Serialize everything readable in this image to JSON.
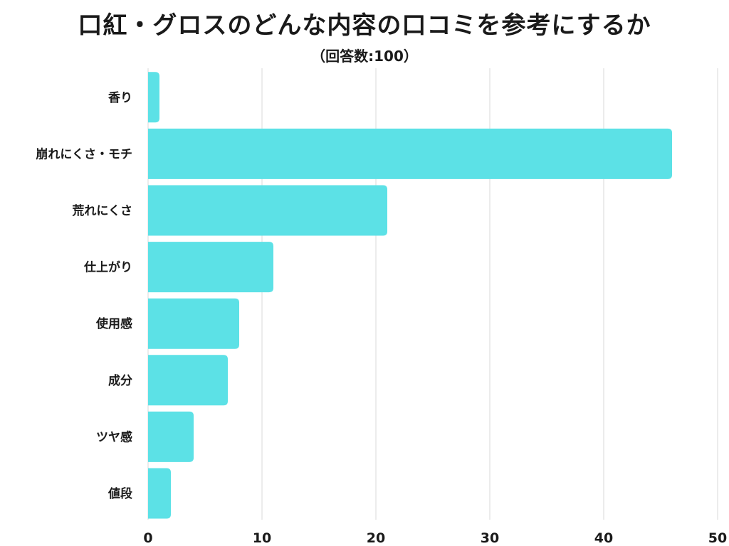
{
  "chart_data": {
    "type": "bar",
    "orientation": "horizontal",
    "title": "口紅・グロスのどんな内容の口コミを参考にするか",
    "subtitle": "（回答数:100）",
    "categories": [
      "香り",
      "崩れにくさ・モチ",
      "荒れにくさ",
      "仕上がり",
      "使用感",
      "成分",
      "ツヤ感",
      "値段"
    ],
    "values": [
      1,
      46,
      21,
      11,
      8,
      7,
      4,
      2
    ],
    "xlim": [
      0,
      50
    ],
    "xticks": [
      0,
      10,
      20,
      30,
      40,
      50
    ],
    "xlabel": "",
    "ylabel": "",
    "grid": true,
    "legend": "none",
    "colors": {
      "bar": "#5ce1e6",
      "grid": "#d9d9d9",
      "text": "#1a1a1a"
    }
  }
}
